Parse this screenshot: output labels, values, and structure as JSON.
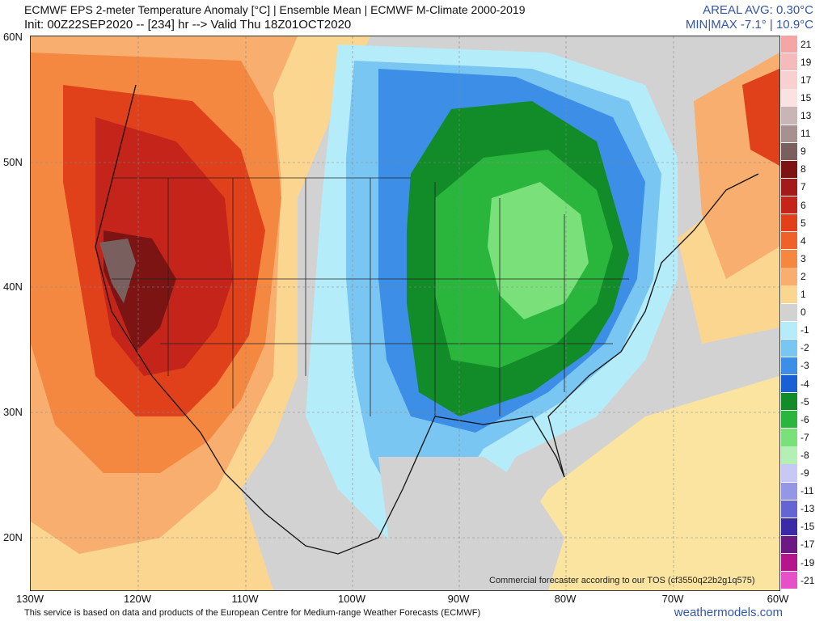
{
  "header": {
    "title_line1": "ECMWF EPS 2-meter Temperature Anomaly [°C] | Ensemble Mean | ECMWF M-Climate 2000-2019",
    "title_line2": "Init: 00Z22SEP2020 -- [234] hr --> Valid Thu 18Z01OCT2020",
    "areal_avg": "AREAL AVG: 0.30°C",
    "min_max": "MIN|MAX -7.1° | 10.9°C"
  },
  "axes": {
    "lat_labels": [
      "60N",
      "50N",
      "40N",
      "30N",
      "20N"
    ],
    "lon_labels": [
      "130W",
      "120W",
      "110W",
      "100W",
      "90W",
      "80W",
      "70W",
      "60W"
    ]
  },
  "legend": {
    "items": [
      {
        "label": "21",
        "color": "#f2a6a6"
      },
      {
        "label": "19",
        "color": "#f5baba"
      },
      {
        "label": "17",
        "color": "#f8d0d0"
      },
      {
        "label": "15",
        "color": "#fbe2e2"
      },
      {
        "label": "13",
        "color": "#c9b5b5"
      },
      {
        "label": "11",
        "color": "#a69090"
      },
      {
        "label": "9",
        "color": "#7a5f5f"
      },
      {
        "label": "8",
        "color": "#7d1414"
      },
      {
        "label": "7",
        "color": "#a31a1a"
      },
      {
        "label": "6",
        "color": "#c42419"
      },
      {
        "label": "5",
        "color": "#e0401a"
      },
      {
        "label": "4",
        "color": "#f0602a"
      },
      {
        "label": "3",
        "color": "#f58840"
      },
      {
        "label": "2",
        "color": "#f8ae6e"
      },
      {
        "label": "1",
        "color": "#fbd690"
      },
      {
        "label": "0",
        "color": "#d2d2d2"
      },
      {
        "label": "-1",
        "color": "#b4ecfa"
      },
      {
        "label": "-2",
        "color": "#7ac6f2"
      },
      {
        "label": "-3",
        "color": "#3c8ee6"
      },
      {
        "label": "-4",
        "color": "#1a5fd4"
      },
      {
        "label": "-5",
        "color": "#128c28"
      },
      {
        "label": "-6",
        "color": "#2ab53c"
      },
      {
        "label": "-7",
        "color": "#7ae07a"
      },
      {
        "label": "-8",
        "color": "#b4f0b4"
      },
      {
        "label": "-9",
        "color": "#c8c8f5"
      },
      {
        "label": "-11",
        "color": "#9696e6"
      },
      {
        "label": "-13",
        "color": "#6464d2"
      },
      {
        "label": "-15",
        "color": "#3a2aa6"
      },
      {
        "label": "-17",
        "color": "#6a1a82"
      },
      {
        "label": "-19",
        "color": "#b4148c"
      },
      {
        "label": "-21",
        "color": "#e650c8"
      }
    ]
  },
  "footer": {
    "credit": "This service is based on data and products of the European Centre for Medium-range Weather Forecasts (ECMWF)",
    "brand": "weathermodels.com",
    "tos": "Commercial forecaster according to our TOS (cf3550q22b2g1q575)"
  }
}
